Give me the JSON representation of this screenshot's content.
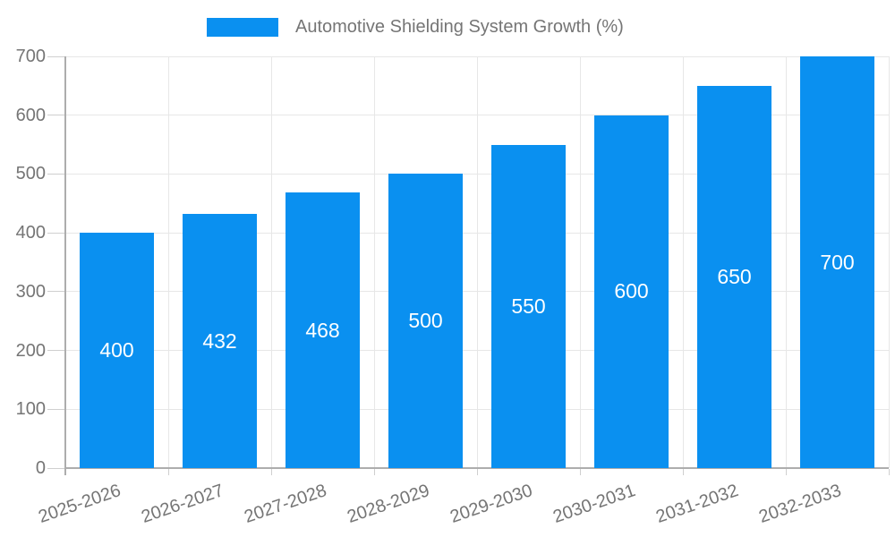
{
  "chart_data": {
    "type": "bar",
    "title": "Automotive Shielding System Growth (%)",
    "categories": [
      "2025-2026",
      "2026-2027",
      "2027-2028",
      "2028-2029",
      "2029-2030",
      "2030-2031",
      "2031-2032",
      "2032-2033"
    ],
    "series": [
      {
        "name": "Automotive Shielding System Growth (%)",
        "values": [
          400,
          432,
          468,
          500,
          550,
          600,
          650,
          700
        ]
      }
    ],
    "xlabel": "",
    "ylabel": "",
    "ylim": [
      0,
      700
    ],
    "yticks": [
      0,
      100,
      200,
      300,
      400,
      500,
      600,
      700
    ],
    "grid": true,
    "legend_position": "top",
    "value_labels": "white, centered inside bars",
    "colors": {
      "bar": "#0a90f0",
      "axis_text": "#757575",
      "legend_text": "#757575",
      "grid_line": "#e7e7e7",
      "axis_line": "#adadad",
      "tick": "#cfcfcf",
      "value_label": "#ffffff",
      "background": "#ffffff"
    }
  }
}
